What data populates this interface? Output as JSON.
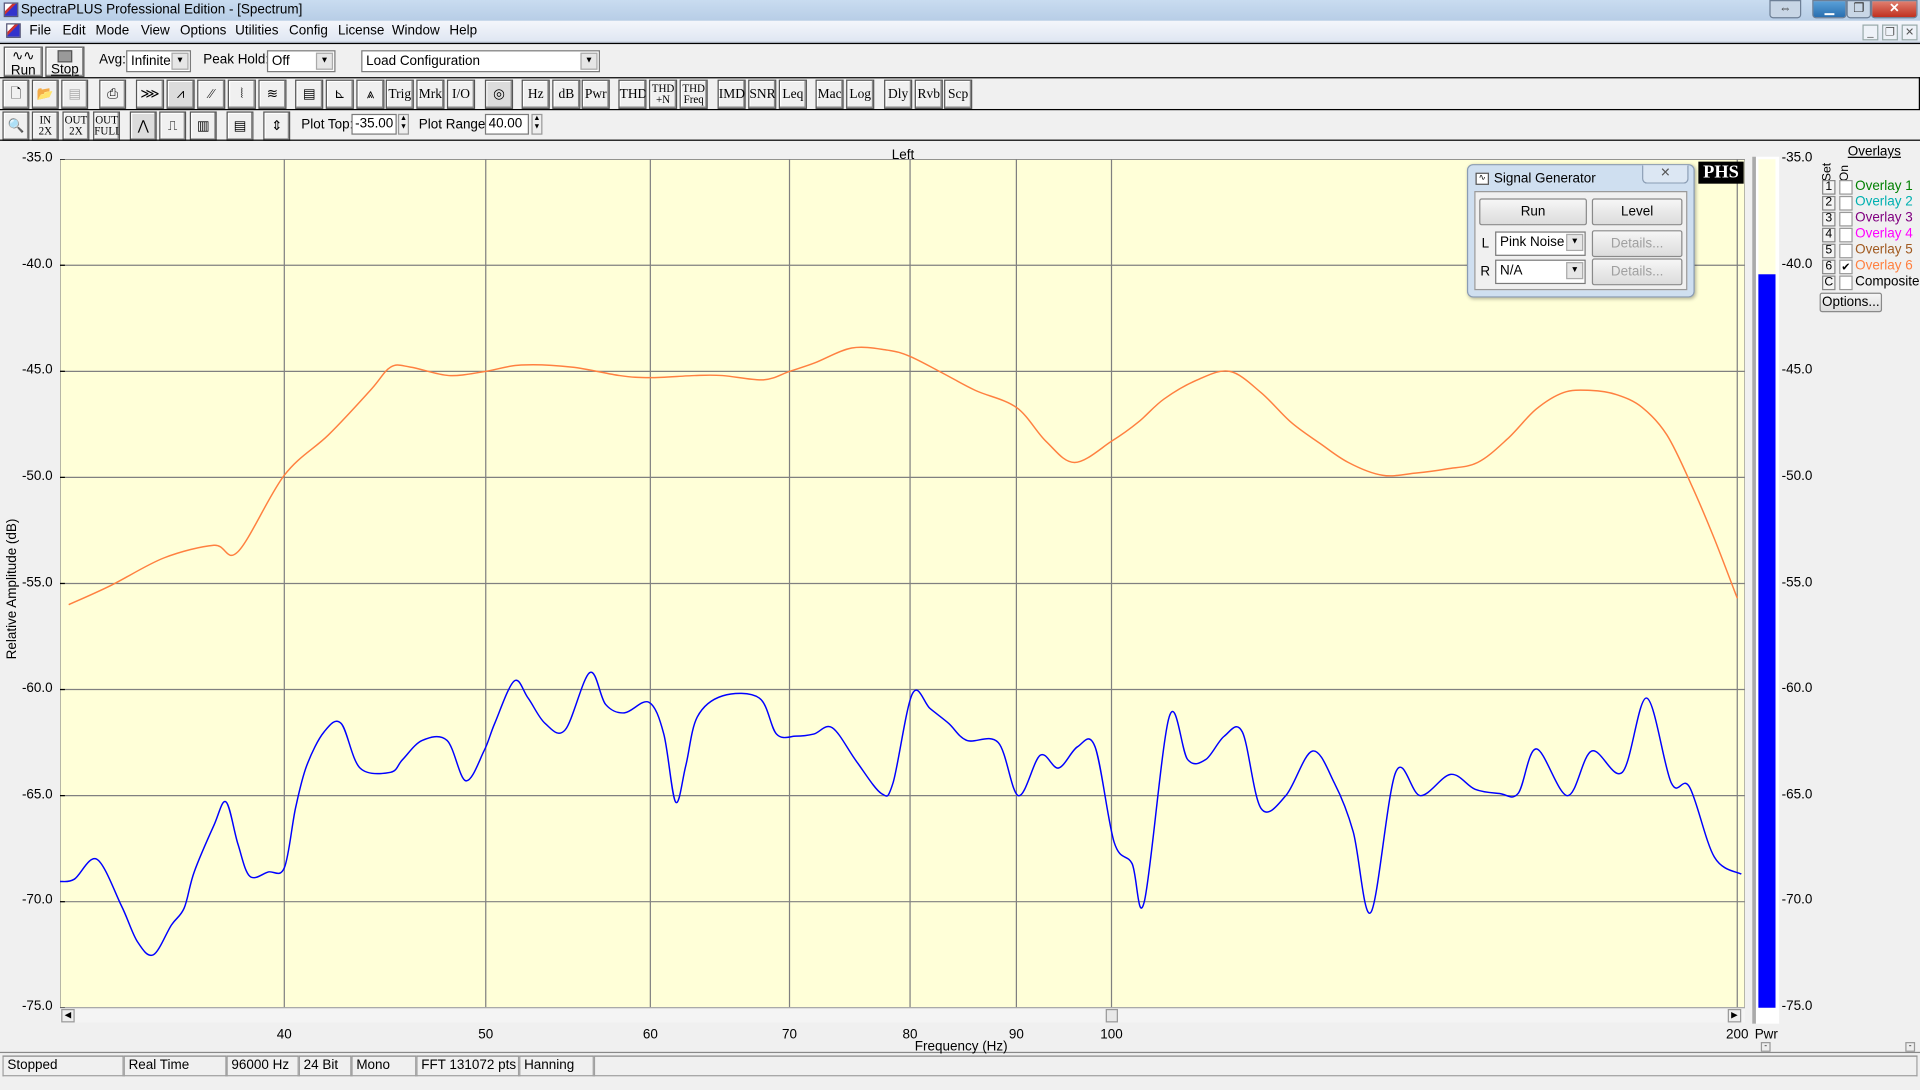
{
  "window": {
    "title": "SpectraPLUS Professional Edition - [Spectrum]"
  },
  "menu": [
    "File",
    "Edit",
    "Mode",
    "View",
    "Options",
    "Utilities",
    "Config",
    "License",
    "Window",
    "Help"
  ],
  "toolbar": {
    "run_label": "Run",
    "stop_label": "Stop",
    "avg_label": "Avg:",
    "avg_value": "Infinite",
    "peak_hold_label": "Peak Hold:",
    "peak_hold_value": "Off",
    "config_value": "Load Configuration",
    "row2_buttons": [
      "Trig",
      "Mrk",
      "I/O",
      "Hz",
      "dB",
      "Pwr",
      "THD",
      "THD +N",
      "THD Freq",
      "IMD",
      "SNR",
      "Leq",
      "Mac",
      "Log",
      "Dly",
      "Rvb",
      "Scp"
    ],
    "plot_top_label": "Plot Top:",
    "plot_top_value": "-35.00",
    "plot_range_label": "Plot Range:",
    "plot_range_value": "40.00"
  },
  "plot": {
    "channel_title": "Left",
    "logo_text": "PHS",
    "meter_label": "Pwr",
    "meter_level_db": -40.4,
    "meter_color": "#0000ff"
  },
  "chart_data": {
    "type": "line",
    "title": "Left",
    "xlabel": "Frequency (Hz)",
    "ylabel": "Relative Amplitude (dB)",
    "x_scale": "log",
    "xlim": [
      31.2,
      201.7
    ],
    "ylim": [
      -75,
      -35
    ],
    "grid": true,
    "background": "#ffffd8",
    "xticks": [
      40,
      50,
      60,
      70,
      80,
      90,
      100,
      200
    ],
    "xtick_labels": [
      "40",
      "50",
      "60",
      "70",
      "80",
      "90",
      "100",
      "200"
    ],
    "yticks": [
      -35,
      -40,
      -45,
      -50,
      -55,
      -60,
      -65,
      -70,
      -75
    ],
    "ytick_labels": [
      "-35.0",
      "-40.0",
      "-45.0",
      "-50.0",
      "-55.0",
      "-60.0",
      "-65.0",
      "-70.0",
      "-75.0"
    ],
    "series": [
      {
        "name": "Overlay 6",
        "color": "#ff8040",
        "points": [
          [
            31.5,
            -56.0
          ],
          [
            33,
            -55.1
          ],
          [
            35,
            -53.8
          ],
          [
            37,
            -53.2
          ],
          [
            38,
            -53.5
          ],
          [
            40,
            -49.9
          ],
          [
            42,
            -48.0
          ],
          [
            44,
            -45.9
          ],
          [
            45,
            -44.8
          ],
          [
            46,
            -44.8
          ],
          [
            48,
            -45.2
          ],
          [
            50,
            -45.0
          ],
          [
            52,
            -44.7
          ],
          [
            55,
            -44.8
          ],
          [
            58,
            -45.2
          ],
          [
            60,
            -45.3
          ],
          [
            63,
            -45.2
          ],
          [
            65,
            -45.2
          ],
          [
            68,
            -45.4
          ],
          [
            70,
            -45.0
          ],
          [
            72,
            -44.6
          ],
          [
            75,
            -43.9
          ],
          [
            78,
            -44.0
          ],
          [
            80,
            -44.3
          ],
          [
            83,
            -45.1
          ],
          [
            86,
            -45.9
          ],
          [
            90,
            -46.7
          ],
          [
            93,
            -48.3
          ],
          [
            96,
            -49.3
          ],
          [
            100,
            -48.3
          ],
          [
            103,
            -47.4
          ],
          [
            106,
            -46.3
          ],
          [
            110,
            -45.4
          ],
          [
            114,
            -45.0
          ],
          [
            118,
            -46.0
          ],
          [
            122,
            -47.4
          ],
          [
            126,
            -48.4
          ],
          [
            130,
            -49.3
          ],
          [
            135,
            -49.9
          ],
          [
            140,
            -49.8
          ],
          [
            145,
            -49.6
          ],
          [
            150,
            -49.3
          ],
          [
            155,
            -48.2
          ],
          [
            160,
            -46.8
          ],
          [
            165,
            -46.0
          ],
          [
            170,
            -45.9
          ],
          [
            175,
            -46.1
          ],
          [
            180,
            -46.7
          ],
          [
            185,
            -48.0
          ],
          [
            190,
            -50.3
          ],
          [
            195,
            -52.9
          ],
          [
            200,
            -55.7
          ]
        ]
      },
      {
        "color": "#0000ff",
        "points": [
          [
            31.2,
            -69.05
          ],
          [
            31.7,
            -68.94
          ],
          [
            32.5,
            -68.0
          ],
          [
            33.4,
            -70.2
          ],
          [
            34.0,
            -71.9
          ],
          [
            34.6,
            -72.5
          ],
          [
            35.3,
            -71.1
          ],
          [
            35.8,
            -70.3
          ],
          [
            36.2,
            -68.6
          ],
          [
            37.0,
            -66.4
          ],
          [
            37.5,
            -65.3
          ],
          [
            38.0,
            -67.3
          ],
          [
            38.5,
            -68.8
          ],
          [
            39.3,
            -68.6
          ],
          [
            40.0,
            -68.4
          ],
          [
            40.5,
            -65.6
          ],
          [
            41.0,
            -63.6
          ],
          [
            41.8,
            -62.0
          ],
          [
            42.6,
            -61.6
          ],
          [
            43.5,
            -63.7
          ],
          [
            45.0,
            -63.9
          ],
          [
            45.6,
            -63.3
          ],
          [
            46.6,
            -62.4
          ],
          [
            47.9,
            -62.4
          ],
          [
            48.9,
            -64.3
          ],
          [
            49.9,
            -62.9
          ],
          [
            50.5,
            -61.6
          ],
          [
            51.6,
            -59.6
          ],
          [
            52.4,
            -60.4
          ],
          [
            53.4,
            -61.6
          ],
          [
            54.6,
            -61.9
          ],
          [
            56.1,
            -59.2
          ],
          [
            57.1,
            -60.7
          ],
          [
            58.3,
            -61.1
          ],
          [
            59.9,
            -60.6
          ],
          [
            60.9,
            -62.1
          ],
          [
            61.7,
            -65.3
          ],
          [
            62.4,
            -63.6
          ],
          [
            63.2,
            -61.3
          ],
          [
            65.0,
            -60.3
          ],
          [
            67.7,
            -60.4
          ],
          [
            69.0,
            -62.1
          ],
          [
            70.5,
            -62.2
          ],
          [
            71.9,
            -62.1
          ],
          [
            73.4,
            -61.8
          ],
          [
            75.4,
            -63.4
          ],
          [
            77.5,
            -64.9
          ],
          [
            78.5,
            -64.4
          ],
          [
            80.2,
            -60.2
          ],
          [
            81.8,
            -60.9
          ],
          [
            83.5,
            -61.6
          ],
          [
            85.2,
            -62.4
          ],
          [
            88.2,
            -62.5
          ],
          [
            90.2,
            -65.0
          ],
          [
            92.4,
            -63.1
          ],
          [
            94.3,
            -63.7
          ],
          [
            96.3,
            -62.7
          ],
          [
            98.2,
            -62.7
          ],
          [
            100.3,
            -67.2
          ],
          [
            102.3,
            -68.2
          ],
          [
            103.7,
            -70.0
          ],
          [
            106.6,
            -61.3
          ],
          [
            108.8,
            -63.3
          ],
          [
            111.0,
            -63.3
          ],
          [
            113.3,
            -62.2
          ],
          [
            115.6,
            -62.0
          ],
          [
            118.0,
            -65.6
          ],
          [
            121.3,
            -65.0
          ],
          [
            124.9,
            -62.9
          ],
          [
            128.0,
            -64.4
          ],
          [
            130.7,
            -66.7
          ],
          [
            133.3,
            -70.5
          ],
          [
            137.0,
            -63.9
          ],
          [
            140.8,
            -65.0
          ],
          [
            145.6,
            -64.0
          ],
          [
            149.6,
            -64.7
          ],
          [
            153.7,
            -64.9
          ],
          [
            156.9,
            -64.9
          ],
          [
            160.1,
            -62.8
          ],
          [
            165.7,
            -65.0
          ],
          [
            170.2,
            -62.9
          ],
          [
            176.1,
            -63.9
          ],
          [
            180.9,
            -60.4
          ],
          [
            185.9,
            -64.4
          ],
          [
            189.7,
            -64.6
          ],
          [
            195.0,
            -67.9
          ],
          [
            200.9,
            -68.7
          ]
        ]
      }
    ]
  },
  "signal_generator": {
    "title": "Signal Generator",
    "run_label": "Run",
    "level_label": "Level",
    "left_label": "L",
    "left_value": "Pink Noise",
    "right_label": "R",
    "right_value": "N/A",
    "details_label": "Details..."
  },
  "overlays": {
    "title": "Overlays",
    "set_header": "Set",
    "on_header": "On",
    "items": [
      {
        "key": "1",
        "label": "Overlay 1",
        "color": "#008000",
        "on": false
      },
      {
        "key": "2",
        "label": "Overlay 2",
        "color": "#00b0b0",
        "on": false
      },
      {
        "key": "3",
        "label": "Overlay 3",
        "color": "#800080",
        "on": false
      },
      {
        "key": "4",
        "label": "Overlay 4",
        "color": "#ff00ff",
        "on": false
      },
      {
        "key": "5",
        "label": "Overlay 5",
        "color": "#a05a20",
        "on": false
      },
      {
        "key": "6",
        "label": "Overlay 6",
        "color": "#ff8040",
        "on": true
      },
      {
        "key": "C",
        "label": "Composite",
        "color": "#000000",
        "on": false
      }
    ],
    "options_label": "Options..."
  },
  "status": [
    "Stopped",
    "Real Time",
    "96000 Hz",
    "24 Bit",
    "Mono",
    "FFT 131072 pts",
    "Hanning"
  ]
}
